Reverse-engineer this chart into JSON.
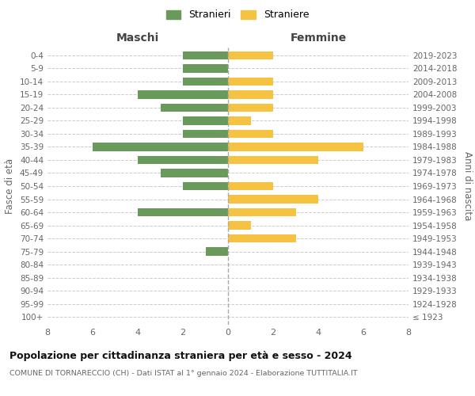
{
  "age_groups": [
    "100+",
    "95-99",
    "90-94",
    "85-89",
    "80-84",
    "75-79",
    "70-74",
    "65-69",
    "60-64",
    "55-59",
    "50-54",
    "45-49",
    "40-44",
    "35-39",
    "30-34",
    "25-29",
    "20-24",
    "15-19",
    "10-14",
    "5-9",
    "0-4"
  ],
  "birth_years": [
    "≤ 1923",
    "1924-1928",
    "1929-1933",
    "1934-1938",
    "1939-1943",
    "1944-1948",
    "1949-1953",
    "1954-1958",
    "1959-1963",
    "1964-1968",
    "1969-1973",
    "1974-1978",
    "1979-1983",
    "1984-1988",
    "1989-1993",
    "1994-1998",
    "1999-2003",
    "2004-2008",
    "2009-2013",
    "2014-2018",
    "2019-2023"
  ],
  "maschi": [
    0,
    0,
    0,
    0,
    0,
    1,
    0,
    0,
    4,
    0,
    2,
    3,
    4,
    6,
    2,
    2,
    3,
    4,
    2,
    2,
    2
  ],
  "femmine": [
    0,
    0,
    0,
    0,
    0,
    0,
    3,
    1,
    3,
    4,
    2,
    0,
    4,
    6,
    2,
    1,
    2,
    2,
    2,
    0,
    2
  ],
  "maschi_color": "#6a9a5b",
  "femmine_color": "#f5c242",
  "background_color": "#ffffff",
  "grid_color": "#cccccc",
  "title": "Popolazione per cittadinanza straniera per età e sesso - 2024",
  "subtitle": "COMUNE DI TORNARECCIO (CH) - Dati ISTAT al 1° gennaio 2024 - Elaborazione TUTTITALIA.IT",
  "xlabel_left": "Maschi",
  "xlabel_right": "Femmine",
  "ylabel_left": "Fasce di età",
  "ylabel_right": "Anni di nascita",
  "legend_stranieri": "Stranieri",
  "legend_straniere": "Straniere",
  "xlim": 8
}
